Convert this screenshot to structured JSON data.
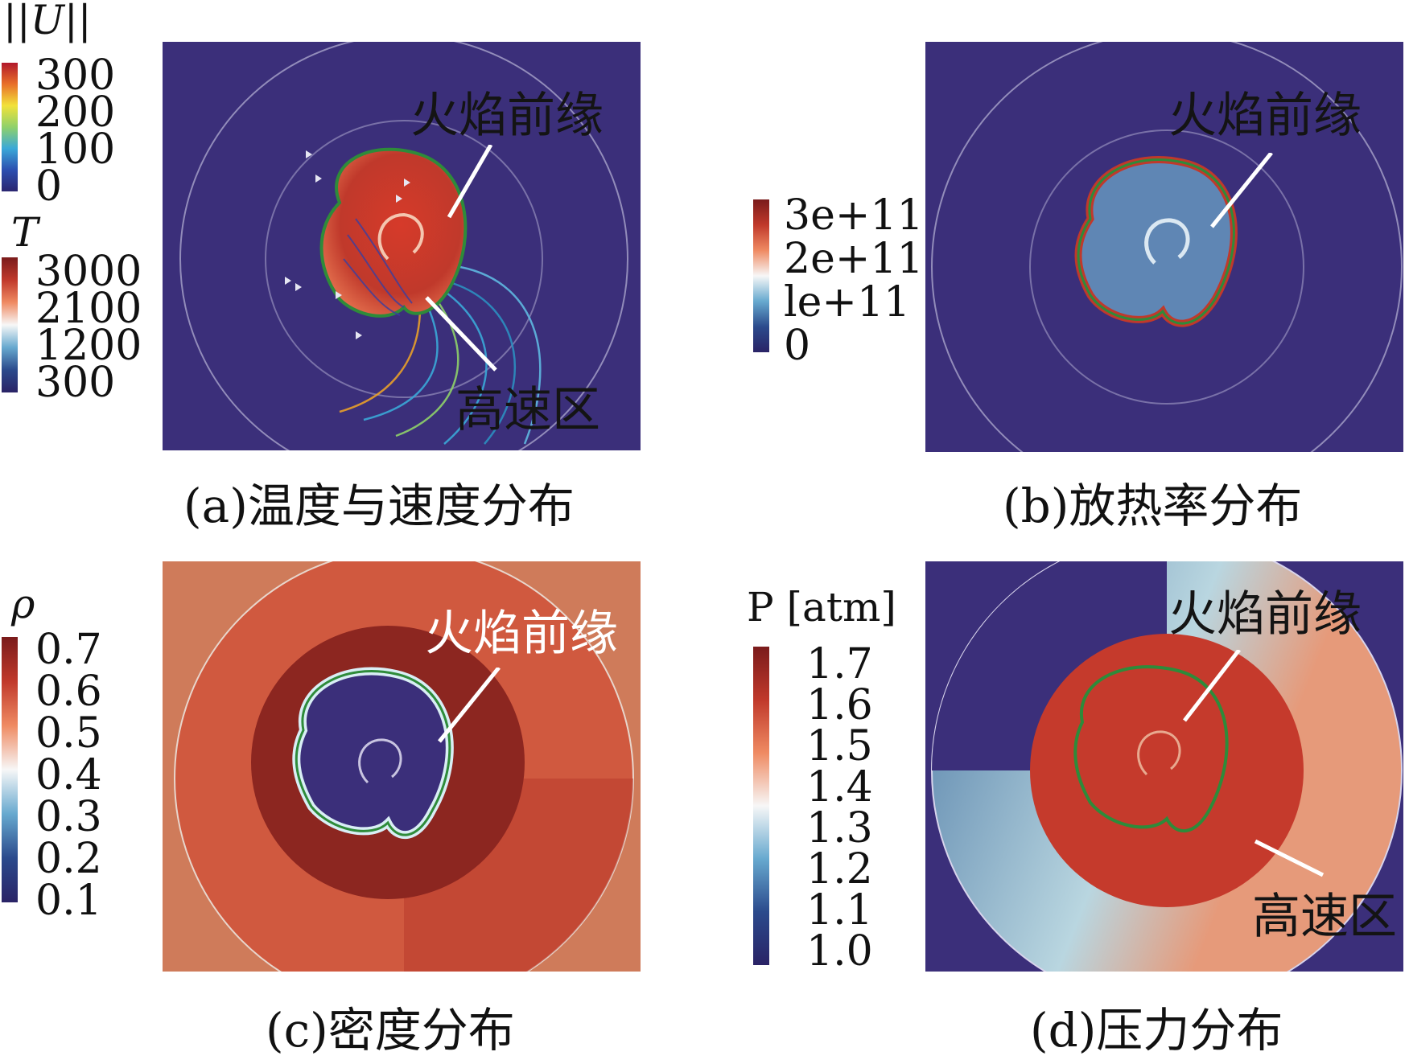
{
  "panels": {
    "a": {
      "caption": "(a)温度与速度分布",
      "label_flame": "火焰前缘",
      "label_fast": "高速区",
      "cbar_U": {
        "title": "||U||",
        "ticks": [
          "300",
          "200",
          "100",
          "0"
        ]
      },
      "cbar_T": {
        "title": "T",
        "ticks": [
          "3000",
          "2100",
          "1200",
          "300"
        ]
      }
    },
    "b": {
      "caption": "(b)放热率分布",
      "label_flame": "火焰前缘",
      "cbar": {
        "ticks": [
          "3e+11",
          "2e+11",
          "le+11",
          "0"
        ]
      }
    },
    "c": {
      "caption": "(c)密度分布",
      "label_flame": "火焰前缘",
      "cbar": {
        "title": "ρ",
        "ticks": [
          "0.7",
          "0.6",
          "0.5",
          "0.4",
          "0.3",
          "0.2",
          "0.1"
        ]
      }
    },
    "d": {
      "caption": "(d)压力分布",
      "label_flame": "火焰前缘",
      "label_fast": "高速区",
      "cbar": {
        "title": "P [atm]",
        "ticks": [
          "1.7",
          "1.6",
          "1.5",
          "1.4",
          "1.3",
          "1.2",
          "1.1",
          "1.0"
        ]
      }
    }
  },
  "colors": {
    "background_field": "#3b2f7a",
    "hot_red": "#c0392b",
    "flame_front": "#2e8b3a",
    "density_orange": "#cf7b5a",
    "pressure_red": "#c53a2c"
  }
}
